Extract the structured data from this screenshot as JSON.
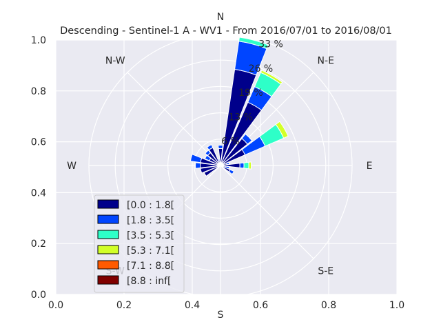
{
  "chart_data": {
    "type": "windrose",
    "title": "Descending - Sentinel-1 A - WV1 - From 2016/07/01 to 2016/08/01",
    "x_ticks": [
      "0.0",
      "0.2",
      "0.4",
      "0.6",
      "0.8",
      "1.0"
    ],
    "y_ticks": [
      "0.0",
      "0.2",
      "0.4",
      "0.6",
      "0.8",
      "1.0"
    ],
    "directions": [
      "N",
      "N-E",
      "E",
      "S-E",
      "S",
      "S-W",
      "W",
      "N-W"
    ],
    "ring_labels": [
      "6 %",
      "13 %",
      "19 %",
      "26 %",
      "33 %"
    ],
    "ring_values": [
      6.5,
      13,
      19.5,
      26,
      32.5
    ],
    "colors": [
      "#00008b",
      "#0045ff",
      "#2effc8",
      "#d2ff28",
      "#ff5a00",
      "#800000"
    ],
    "legend": [
      {
        "label": "[0.0 : 1.8[",
        "color": "#00008b"
      },
      {
        "label": "[1.8 : 3.5[",
        "color": "#0045ff"
      },
      {
        "label": "[3.5 : 5.3[",
        "color": "#2effc8"
      },
      {
        "label": "[5.3 : 7.1[",
        "color": "#d2ff28"
      },
      {
        "label": "[7.1 : 8.8[",
        "color": "#ff5a00"
      },
      {
        "label": "[8.8 : inf[",
        "color": "#800000"
      }
    ],
    "sectors": [
      {
        "dir": 0,
        "values": [
          4.2,
          0.8
        ]
      },
      {
        "dir": 15,
        "values": [
          24.0,
          7.0,
          1.0
        ]
      },
      {
        "dir": 30,
        "values": [
          17.0,
          4.2,
          3.8,
          0.6
        ]
      },
      {
        "dir": 45,
        "values": [
          8.5,
          1.4
        ]
      },
      {
        "dir": 60,
        "values": [
          6.6,
          5.4,
          5.0,
          1.2
        ]
      },
      {
        "dir": 75,
        "values": [
          1.6,
          0.6
        ]
      },
      {
        "dir": 90,
        "values": [
          4.8,
          1.0,
          1.2,
          0.6
        ]
      },
      {
        "dir": 105,
        "values": [
          1.2,
          1.0
        ]
      },
      {
        "dir": 120,
        "values": [
          2.6,
          1.0
        ]
      },
      {
        "dir": 135,
        "values": [
          0.2
        ]
      },
      {
        "dir": 180,
        "values": [
          0.2
        ]
      },
      {
        "dir": 240,
        "values": [
          4.4
        ]
      },
      {
        "dir": 255,
        "values": [
          5.0
        ]
      },
      {
        "dir": 270,
        "values": [
          5.0,
          1.2
        ]
      },
      {
        "dir": 285,
        "values": [
          5.0,
          2.5
        ]
      },
      {
        "dir": 300,
        "values": [
          3.0,
          1.2
        ]
      },
      {
        "dir": 315,
        "values": [
          4.0,
          0.8
        ]
      },
      {
        "dir": 330,
        "values": [
          4.8,
          0.8
        ]
      },
      {
        "dir": 345,
        "values": [
          1.2,
          0.4
        ]
      }
    ]
  }
}
